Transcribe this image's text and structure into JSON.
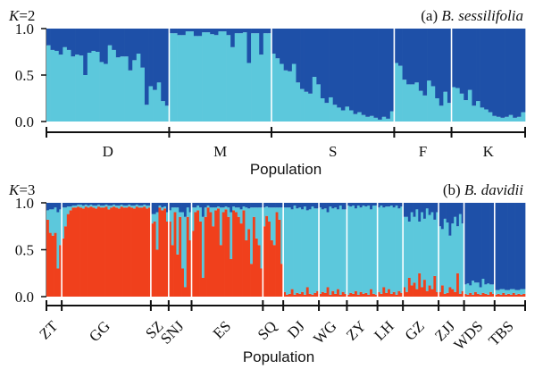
{
  "colors": {
    "light_blue": "#5cc8dc",
    "dark_blue": "#1e50a8",
    "red": "#f0401c",
    "separator": "#ffffff",
    "axis": "#111111"
  },
  "chart_data": [
    {
      "type": "bar",
      "stacked": true,
      "panel_label": "(a)",
      "species": "B. sessilifolia",
      "k_label": "K",
      "k_value": "=2",
      "xlabel": "Population",
      "ylabel": "",
      "ylim": [
        0,
        1
      ],
      "yticks": [
        "0.0",
        "0.5",
        "1.0"
      ],
      "populations": [
        "D",
        "M",
        "S",
        "F",
        "K"
      ],
      "series_order": [
        "light_blue",
        "dark_blue"
      ],
      "light_blue": [
        [
          0.82,
          0.77,
          0.76,
          0.72,
          0.8,
          0.77,
          0.7,
          0.72,
          0.71,
          0.5,
          0.74,
          0.76,
          0.75,
          0.64,
          0.62,
          0.82,
          0.77,
          0.69,
          0.7,
          0.7,
          0.55,
          0.66,
          0.73,
          0.58,
          0.18,
          0.38,
          0.34,
          0.42,
          0.22,
          0.17
        ],
        [
          0.95,
          0.95,
          0.93,
          0.93,
          0.97,
          0.97,
          0.92,
          0.92,
          0.96,
          0.96,
          0.94,
          0.93,
          0.97,
          0.97,
          0.93,
          0.8,
          0.95,
          0.95,
          0.96,
          0.63,
          0.95,
          0.95,
          0.72,
          0.95,
          0.95
        ],
        [
          0.73,
          0.68,
          0.62,
          0.55,
          0.54,
          0.62,
          0.42,
          0.35,
          0.32,
          0.3,
          0.48,
          0.4,
          0.25,
          0.2,
          0.26,
          0.18,
          0.15,
          0.12,
          0.16,
          0.12,
          0.08,
          0.1,
          0.07,
          0.05,
          0.06,
          0.04,
          0.02,
          0.05,
          0.03,
          0.11
        ],
        [
          0.63,
          0.6,
          0.45,
          0.4,
          0.4,
          0.42,
          0.33,
          0.28,
          0.44,
          0.38,
          0.25,
          0.17,
          0.32,
          0.2
        ],
        [
          0.37,
          0.36,
          0.3,
          0.23,
          0.34,
          0.17,
          0.22,
          0.15,
          0.13,
          0.1,
          0.06,
          0.05,
          0.04,
          0.05,
          0.07,
          0.04,
          0.05,
          0.1
        ]
      ]
    },
    {
      "type": "bar",
      "stacked": true,
      "panel_label": "(b)",
      "species": "B. davidii",
      "k_label": "K",
      "k_value": "=3",
      "xlabel": "Population",
      "ylabel": "",
      "ylim": [
        0,
        1
      ],
      "yticks": [
        "0.0",
        "0.5",
        "1.0"
      ],
      "populations": [
        "ZT",
        "GG",
        "SZ",
        "SNJ",
        "ES",
        "SQ",
        "DJ",
        "WG",
        "ZY",
        "LH",
        "GZ",
        "ZJJ",
        "WDS",
        "TBS"
      ],
      "series_order": [
        "red",
        "light_blue",
        "dark_blue"
      ],
      "red": [
        [
          0.82,
          0.68,
          0.65,
          0.68,
          0.3,
          0.55
        ],
        [
          0.62,
          0.75,
          0.88,
          0.92,
          0.95,
          0.95,
          0.96,
          0.95,
          0.94,
          0.96,
          0.95,
          0.96,
          0.95,
          0.94,
          0.96,
          0.95,
          0.95,
          0.96,
          0.93,
          0.95,
          0.96,
          0.95,
          0.94,
          0.96,
          0.95,
          0.95,
          0.96,
          0.95,
          0.94,
          0.96,
          0.95,
          0.95,
          0.96,
          0.94,
          0.95
        ],
        [
          0.78,
          0.8,
          0.5,
          0.95,
          0.92,
          0.94,
          0.8
        ],
        [
          0.8,
          0.55,
          0.9,
          0.45,
          0.85,
          0.3,
          0.1,
          0.85,
          0.6
        ],
        [
          0.7,
          0.9,
          0.92,
          0.8,
          0.2,
          0.85,
          0.95,
          0.9,
          0.75,
          0.92,
          0.94,
          0.55,
          0.9,
          0.93,
          0.85,
          0.4,
          0.92,
          0.9,
          0.85,
          0.78,
          0.92,
          0.6,
          0.72,
          0.35,
          0.85,
          0.62,
          0.55,
          0.3
        ],
        [
          0.75,
          0.86,
          0.8,
          0.6,
          0.55,
          0.9,
          0.82,
          0.35
        ],
        [
          0.05,
          0.02,
          0.03,
          0.08,
          0.02,
          0.04,
          0.03,
          0.05,
          0.02,
          0.1,
          0.03,
          0.02,
          0.04,
          0.06
        ],
        [
          0.03,
          0.05,
          0.04,
          0.1,
          0.02,
          0.06,
          0.03,
          0.08,
          0.02,
          0.05,
          0.03
        ],
        [
          0.02,
          0.04,
          0.03,
          0.06,
          0.02,
          0.05,
          0.03,
          0.04,
          0.02,
          0.08,
          0.03,
          0.02
        ],
        [
          0.05,
          0.03,
          0.1,
          0.04,
          0.08,
          0.03,
          0.05,
          0.02,
          0.06,
          0.04
        ],
        [
          0.1,
          0.05,
          0.2,
          0.12,
          0.15,
          0.08,
          0.25,
          0.1,
          0.18,
          0.06,
          0.12,
          0.08,
          0.22,
          0.05
        ],
        [
          0.05,
          0.12,
          0.03,
          0.04,
          0.1,
          0.08,
          0.05,
          0.25,
          0.03,
          0.06
        ],
        [
          0.03,
          0.02,
          0.04,
          0.02,
          0.05,
          0.03,
          0.02,
          0.04,
          0.03,
          0.02,
          0.05,
          0.03
        ],
        [
          0.02,
          0.03,
          0.02,
          0.04,
          0.02,
          0.03,
          0.02,
          0.04,
          0.02,
          0.03,
          0.02,
          0.03
        ]
      ],
      "light_blue": [
        [
          0.1,
          0.25,
          0.28,
          0.27,
          0.6,
          0.38
        ],
        [
          0.33,
          0.2,
          0.08,
          0.04,
          0.02,
          0.02,
          0.02,
          0.03,
          0.03,
          0.02,
          0.02,
          0.02,
          0.02,
          0.03,
          0.02,
          0.02,
          0.02,
          0.02,
          0.04,
          0.02,
          0.02,
          0.02,
          0.03,
          0.02,
          0.02,
          0.02,
          0.02,
          0.02,
          0.03,
          0.02,
          0.02,
          0.02,
          0.02,
          0.03,
          0.02
        ],
        [
          0.1,
          0.08,
          0.4,
          0.02,
          0.03,
          0.02,
          0.1
        ],
        [
          0.12,
          0.4,
          0.05,
          0.5,
          0.05,
          0.6,
          0.75,
          0.1,
          0.3
        ],
        [
          0.25,
          0.05,
          0.05,
          0.15,
          0.65,
          0.1,
          0.02,
          0.05,
          0.2,
          0.03,
          0.02,
          0.4,
          0.05,
          0.03,
          0.1,
          0.5,
          0.04,
          0.05,
          0.1,
          0.15,
          0.04,
          0.35,
          0.22,
          0.6,
          0.1,
          0.33,
          0.4,
          0.65
        ],
        [
          0.2,
          0.1,
          0.15,
          0.35,
          0.4,
          0.05,
          0.13,
          0.6
        ],
        [
          0.9,
          0.93,
          0.92,
          0.85,
          0.95,
          0.9,
          0.92,
          0.88,
          0.94,
          0.82,
          0.9,
          0.94,
          0.9,
          0.88
        ],
        [
          0.92,
          0.88,
          0.9,
          0.8,
          0.94,
          0.88,
          0.92,
          0.85,
          0.95,
          0.88,
          0.9
        ],
        [
          0.95,
          0.92,
          0.94,
          0.88,
          0.95,
          0.9,
          0.94,
          0.92,
          0.95,
          0.85,
          0.94,
          0.95
        ],
        [
          0.9,
          0.94,
          0.85,
          0.92,
          0.88,
          0.94,
          0.9,
          0.95,
          0.88,
          0.92
        ],
        [
          0.75,
          0.8,
          0.6,
          0.78,
          0.7,
          0.85,
          0.55,
          0.8,
          0.65,
          0.88,
          0.75,
          0.82,
          0.6,
          0.85
        ],
        [
          0.7,
          0.6,
          0.8,
          0.75,
          0.55,
          0.7,
          0.8,
          0.5,
          0.85,
          0.72
        ],
        [
          0.1,
          0.12,
          0.08,
          0.15,
          0.1,
          0.12,
          0.08,
          0.15,
          0.1,
          0.12,
          0.08,
          0.1
        ],
        [
          0.05,
          0.04,
          0.06,
          0.04,
          0.05,
          0.04,
          0.06,
          0.04,
          0.05,
          0.04,
          0.06,
          0.05
        ]
      ]
    }
  ]
}
